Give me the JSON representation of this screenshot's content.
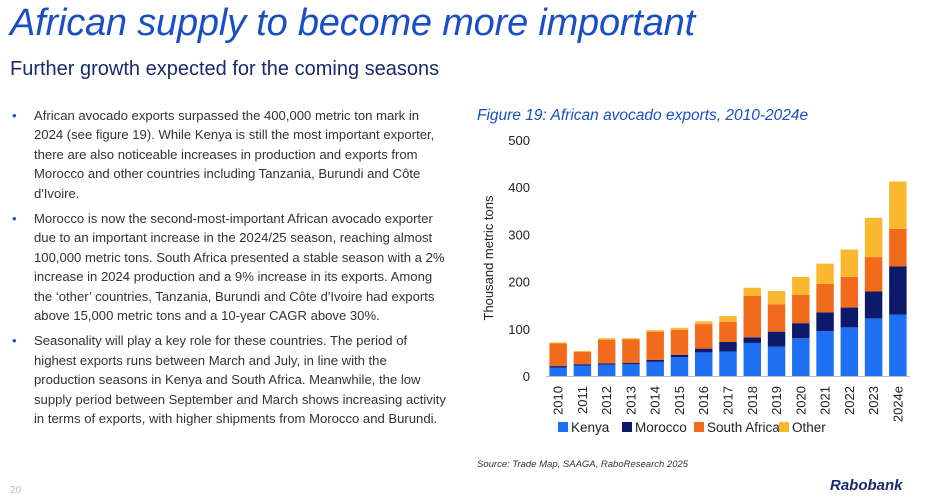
{
  "header": {
    "title": "African supply to become more important",
    "subtitle": "Further growth expected for the coming seasons"
  },
  "bullets": [
    "African avocado exports surpassed the 400,000 metric ton mark in 2024 (see figure 19). While Kenya is still the most important exporter, there are also noticeable increases in production and exports from Morocco and other countries including Tanzania, Burundi and Côte d'Ivoire.",
    "Morocco is now the second-most-important African avocado exporter due to an important increase in the 2024/25 season, reaching almost 100,000 metric tons. South Africa presented a stable season with a 2% increase in 2024 production and a 9% increase in its exports. Among the ‘other’ countries, Tanzania, Burundi and Côte d'Ivoire had exports above 15,000 metric tons and a 10-year CAGR above 30%.",
    "Seasonality will play a key role for these countries. The period of highest exports runs between March and July, in line with the production seasons in Kenya and South Africa. Meanwhile, the low supply period between September and March shows increasing activity in terms of exports, with higher shipments from Morocco and Burundi."
  ],
  "figure": {
    "title": "Figure 19: African avocado exports, 2010-2024e",
    "source": "Source: Trade Map, SAAGA, RaboResearch 2025"
  },
  "footer": {
    "page_number": "20",
    "logo_text": "Rabobank"
  },
  "chart_data": {
    "type": "bar",
    "stacked": true,
    "categories": [
      "2010",
      "2011",
      "2012",
      "2013",
      "2014",
      "2015",
      "2016",
      "2017",
      "2018",
      "2019",
      "2020",
      "2021",
      "2022",
      "2023",
      "2024e"
    ],
    "ylabel": "Thousand metric tons",
    "ylim": [
      0,
      500
    ],
    "yticks": [
      0,
      100,
      200,
      300,
      400,
      500
    ],
    "grid": false,
    "legend_position": "bottom",
    "series": [
      {
        "name": "Kenya",
        "color": "#1f6ff2",
        "values": [
          18,
          22,
          24,
          25,
          30,
          40,
          50,
          52,
          70,
          62,
          80,
          95,
          103,
          122,
          130
        ]
      },
      {
        "name": "Morocco",
        "color": "#0d1a6b",
        "values": [
          3,
          3,
          3,
          3,
          4,
          5,
          8,
          20,
          12,
          32,
          32,
          40,
          42,
          57,
          102
        ]
      },
      {
        "name": "South Africa",
        "color": "#f26a1b",
        "values": [
          48,
          26,
          50,
          50,
          60,
          53,
          52,
          43,
          88,
          58,
          60,
          60,
          65,
          73,
          80
        ]
      },
      {
        "name": "Other",
        "color": "#fbb730",
        "values": [
          2,
          2,
          3,
          2,
          3,
          4,
          6,
          12,
          17,
          28,
          38,
          43,
          58,
          83,
          100
        ]
      }
    ]
  }
}
